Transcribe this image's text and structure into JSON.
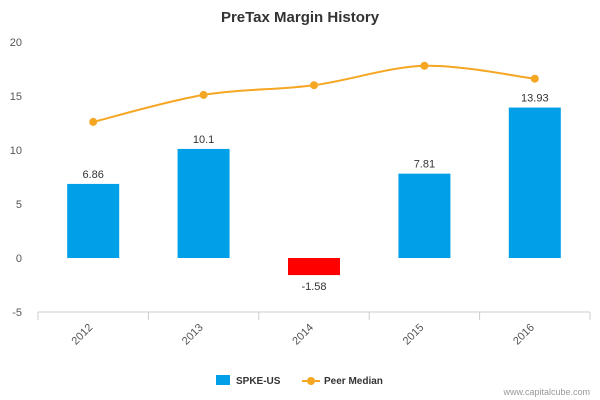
{
  "chart_data": {
    "type": "bar",
    "title": "PreTax Margin History",
    "categories": [
      "2012",
      "2013",
      "2014",
      "2015",
      "2016"
    ],
    "series": [
      {
        "name": "SPKE-US",
        "type": "bar",
        "values": [
          6.86,
          10.1,
          -1.58,
          7.81,
          13.93
        ],
        "labels": [
          "6.86",
          "10.1",
          "-1.58",
          "7.81",
          "13.93"
        ],
        "color": "#00a0e8",
        "negative_color": "#ff0000"
      },
      {
        "name": "Peer Median",
        "type": "line",
        "values": [
          12.6,
          15.1,
          16.0,
          17.8,
          16.6
        ],
        "color": "#f5a623"
      }
    ],
    "yticks": [
      -5,
      0,
      5,
      10,
      15,
      20
    ],
    "ylim": [
      -5,
      20
    ],
    "grid": false,
    "legend": "bottom-center"
  },
  "credit": "www.capitalcube.com"
}
